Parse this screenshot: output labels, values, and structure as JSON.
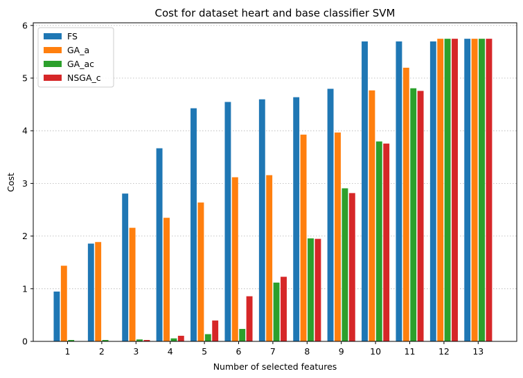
{
  "chart_data": {
    "type": "bar",
    "title": "Cost for dataset heart and base classifier SVM",
    "xlabel": "Number of selected features",
    "ylabel": "Cost",
    "categories": [
      "1",
      "2",
      "3",
      "4",
      "5",
      "6",
      "7",
      "8",
      "9",
      "10",
      "11",
      "12",
      "13"
    ],
    "ylim": [
      0,
      6.05
    ],
    "yticks": [
      0,
      1,
      2,
      3,
      4,
      5,
      6
    ],
    "grid": "horizontal-dotted",
    "legend_position": "top-left",
    "series": [
      {
        "name": "FS",
        "color": "#1f77b4",
        "values": [
          0.95,
          1.86,
          2.81,
          3.67,
          4.43,
          4.55,
          4.6,
          4.64,
          4.8,
          5.7,
          5.7,
          5.7,
          5.75
        ]
      },
      {
        "name": "GA_a",
        "color": "#ff7f0e",
        "values": [
          1.44,
          1.89,
          2.16,
          2.35,
          2.64,
          3.12,
          3.16,
          3.93,
          3.97,
          4.77,
          5.2,
          5.75,
          5.75
        ]
      },
      {
        "name": "GA_ac",
        "color": "#2ca02c",
        "values": [
          0.03,
          0.03,
          0.04,
          0.06,
          0.14,
          0.24,
          1.12,
          1.96,
          2.91,
          3.8,
          4.81,
          5.75,
          5.75
        ]
      },
      {
        "name": "NSGA_c",
        "color": "#d62728",
        "values": [
          0.0,
          0.0,
          0.03,
          0.11,
          0.4,
          0.86,
          1.23,
          1.95,
          2.82,
          3.76,
          4.76,
          5.75,
          5.75
        ]
      }
    ]
  }
}
